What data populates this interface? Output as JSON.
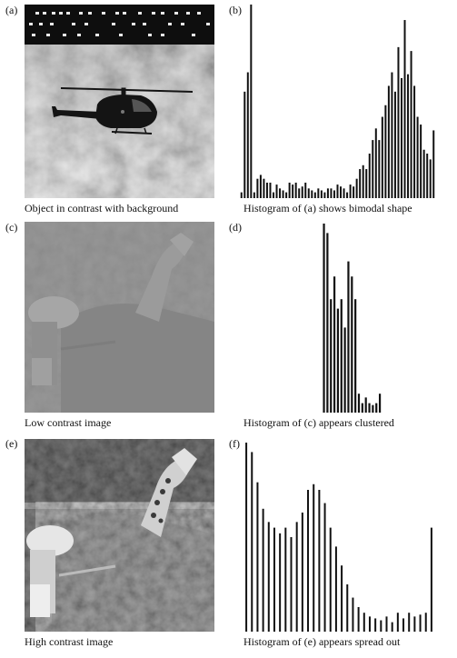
{
  "panels": [
    {
      "letter": "(a)",
      "caption": "Object in contrast with background"
    },
    {
      "letter": "(b)",
      "caption": "Histogram of (a) shows bimodal shape"
    },
    {
      "letter": "(c)",
      "caption": "Low contrast image"
    },
    {
      "letter": "(d)",
      "caption": "Histogram of (c) appears clustered"
    },
    {
      "letter": "(e)",
      "caption": "High contrast image"
    },
    {
      "letter": "(f)",
      "caption": "Histogram of (e) appears spread out"
    }
  ],
  "histograms": {
    "b": {
      "type": "bar",
      "values": [
        3,
        55,
        65,
        100,
        3,
        10,
        12,
        10,
        8,
        8,
        3,
        7,
        5,
        4,
        3,
        8,
        7,
        8,
        5,
        6,
        8,
        5,
        4,
        3,
        5,
        4,
        3,
        5,
        5,
        4,
        7,
        6,
        5,
        3,
        7,
        6,
        10,
        15,
        17,
        15,
        23,
        30,
        36,
        30,
        42,
        48,
        58,
        65,
        55,
        78,
        62,
        92,
        64,
        76,
        58,
        42,
        38,
        25,
        23,
        20,
        35
      ],
      "bar_color": "#111111"
    },
    "d": {
      "type": "bar",
      "values": [
        0,
        0,
        0,
        0,
        0,
        0,
        0,
        0,
        0,
        100,
        95,
        60,
        72,
        55,
        60,
        45,
        80,
        72,
        60,
        10,
        5,
        8,
        5,
        4,
        5,
        10
      ],
      "bar_color": "#111111"
    },
    "f": {
      "type": "bar",
      "values": [
        100,
        95,
        79,
        65,
        58,
        55,
        52,
        55,
        50,
        58,
        63,
        75,
        78,
        75,
        68,
        55,
        45,
        35,
        25,
        18,
        13,
        10,
        8,
        7,
        6,
        8,
        5,
        10,
        7,
        10,
        8,
        9,
        10,
        55
      ],
      "bar_color": "#111111"
    }
  },
  "images": {
    "a": {
      "description_icon": "helicopter-photo"
    },
    "c": {
      "description_icon": "giraffe-low-contrast-photo"
    },
    "e": {
      "description_icon": "giraffe-high-contrast-photo"
    }
  }
}
